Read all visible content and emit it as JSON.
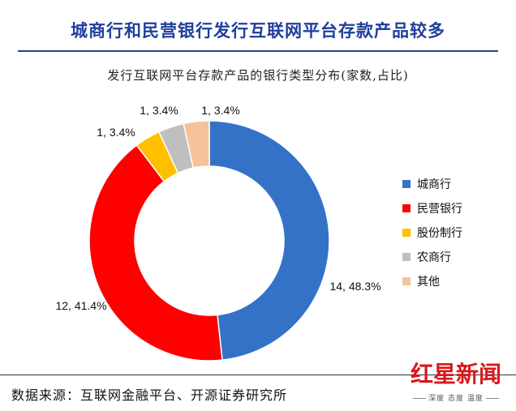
{
  "headline": "城商行和民营银行发行互联网平台存款产品较多",
  "source": "数据来源：互联网金融平台、开源证券研究所",
  "watermark": {
    "text": "红星新闻",
    "tagline": "深度 态度 温度"
  },
  "colors": {
    "headline": "#1f3f9c",
    "city_bank": "#3472c8",
    "private_bank": "#ff0000",
    "joint_stock": "#ffc000",
    "rural_bank": "#bfbfbf",
    "other": "#f6c29a",
    "watermark": "#d8181b"
  },
  "chart_data": {
    "type": "pie",
    "donut": true,
    "title": "发行互联网平台存款产品的银行类型分布(家数,占比)",
    "legend_position": "right",
    "slices": [
      {
        "name": "城商行",
        "count": 14,
        "percent": 48.3,
        "label": "14, 48.3%",
        "color": "#3472c8"
      },
      {
        "name": "民营银行",
        "count": 12,
        "percent": 41.4,
        "label": "12, 41.4%",
        "color": "#ff0000"
      },
      {
        "name": "股份制行",
        "count": 1,
        "percent": 3.4,
        "label": "1, 3.4%",
        "color": "#ffc000"
      },
      {
        "name": "农商行",
        "count": 1,
        "percent": 3.4,
        "label": "1, 3.4%",
        "color": "#bfbfbf"
      },
      {
        "name": "其他",
        "count": 1,
        "percent": 3.4,
        "label": "1, 3.4%",
        "color": "#f6c29a"
      }
    ]
  }
}
